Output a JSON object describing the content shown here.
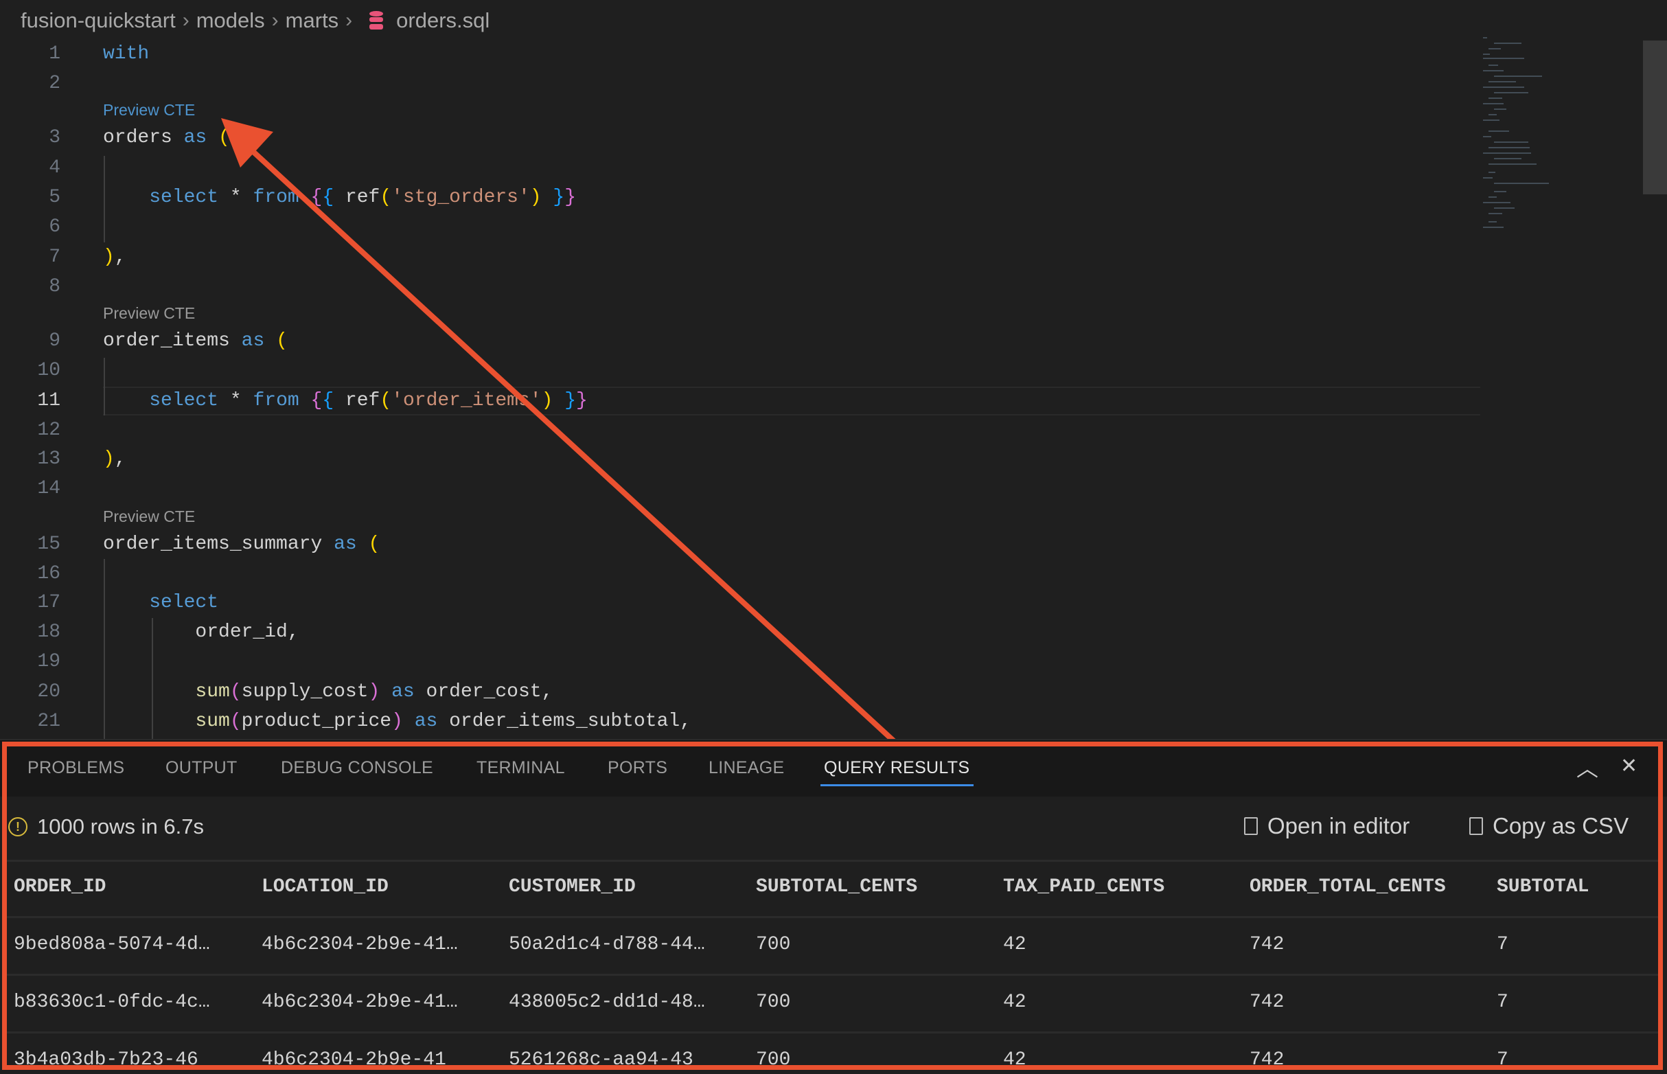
{
  "breadcrumb": [
    "fusion-quickstart",
    "models",
    "marts",
    "orders.sql"
  ],
  "colors": {
    "keyword": "#569cd6",
    "string": "#ce9178",
    "function": "#dcdcaa",
    "paren": "#ffd700",
    "bracket": "#da70d6",
    "brace": "#179fff",
    "annotation": "#ea5130",
    "tab_active": "#3c8ce7",
    "warning": "#d7ba3c",
    "db_icon": "#e8547a"
  },
  "editor": {
    "active_line": 11,
    "codelens_label": "Preview CTE",
    "lines": [
      {
        "n": 1,
        "t": [
          [
            "kw",
            "with"
          ]
        ]
      },
      {
        "n": 2,
        "t": []
      },
      {
        "n": 3,
        "lens": true,
        "t": [
          [
            "tx",
            "orders "
          ],
          [
            "kw",
            "as"
          ],
          [
            "tx",
            " "
          ],
          [
            "y",
            "("
          ]
        ]
      },
      {
        "n": 4,
        "t": []
      },
      {
        "n": 5,
        "t": [
          [
            "tx",
            "    "
          ],
          [
            "kw",
            "select"
          ],
          [
            "tx",
            " * "
          ],
          [
            "kw",
            "from"
          ],
          [
            "tx",
            " "
          ],
          [
            "p",
            "{"
          ],
          [
            "b",
            "{"
          ],
          [
            "tx",
            " ref"
          ],
          [
            "y",
            "("
          ],
          [
            "st",
            "'stg_orders'"
          ],
          [
            "y",
            ")"
          ],
          [
            "tx",
            " "
          ],
          [
            "b",
            "}"
          ],
          [
            "p",
            "}"
          ]
        ]
      },
      {
        "n": 6,
        "t": []
      },
      {
        "n": 7,
        "t": [
          [
            "y",
            ")"
          ],
          [
            "tx",
            ","
          ]
        ]
      },
      {
        "n": 8,
        "t": []
      },
      {
        "n": 9,
        "lens": true,
        "t": [
          [
            "tx",
            "order_items "
          ],
          [
            "kw",
            "as"
          ],
          [
            "tx",
            " "
          ],
          [
            "y",
            "("
          ]
        ]
      },
      {
        "n": 10,
        "t": []
      },
      {
        "n": 11,
        "t": [
          [
            "tx",
            "    "
          ],
          [
            "kw",
            "select"
          ],
          [
            "tx",
            " * "
          ],
          [
            "kw",
            "from"
          ],
          [
            "tx",
            " "
          ],
          [
            "p",
            "{"
          ],
          [
            "b",
            "{"
          ],
          [
            "tx",
            " ref"
          ],
          [
            "y",
            "("
          ],
          [
            "st",
            "'order_items'"
          ],
          [
            "y",
            ")"
          ],
          [
            "tx",
            " "
          ],
          [
            "b",
            "}"
          ],
          [
            "p",
            "}"
          ]
        ]
      },
      {
        "n": 12,
        "t": []
      },
      {
        "n": 13,
        "t": [
          [
            "y",
            ")"
          ],
          [
            "tx",
            ","
          ]
        ]
      },
      {
        "n": 14,
        "t": []
      },
      {
        "n": 15,
        "lens": true,
        "t": [
          [
            "tx",
            "order_items_summary "
          ],
          [
            "kw",
            "as"
          ],
          [
            "tx",
            " "
          ],
          [
            "y",
            "("
          ]
        ]
      },
      {
        "n": 16,
        "t": []
      },
      {
        "n": 17,
        "t": [
          [
            "tx",
            "    "
          ],
          [
            "kw",
            "select"
          ]
        ]
      },
      {
        "n": 18,
        "t": [
          [
            "tx",
            "        order_id,"
          ]
        ]
      },
      {
        "n": 19,
        "t": []
      },
      {
        "n": 20,
        "t": [
          [
            "tx",
            "        "
          ],
          [
            "fn",
            "sum"
          ],
          [
            "p",
            "("
          ],
          [
            "tx",
            "supply_cost"
          ],
          [
            "p",
            ")"
          ],
          [
            "tx",
            " "
          ],
          [
            "kw",
            "as"
          ],
          [
            "tx",
            " order_cost,"
          ]
        ]
      },
      {
        "n": 21,
        "t": [
          [
            "tx",
            "        "
          ],
          [
            "fn",
            "sum"
          ],
          [
            "p",
            "("
          ],
          [
            "tx",
            "product_price"
          ],
          [
            "p",
            ")"
          ],
          [
            "tx",
            " "
          ],
          [
            "kw",
            "as"
          ],
          [
            "tx",
            " order_items_subtotal,"
          ]
        ]
      }
    ]
  },
  "panel": {
    "tabs": [
      "PROBLEMS",
      "OUTPUT",
      "DEBUG CONSOLE",
      "TERMINAL",
      "PORTS",
      "LINEAGE",
      "QUERY RESULTS"
    ],
    "active_tab": "QUERY RESULTS",
    "status": "1000 rows in 6.7s",
    "open_in_editor": "Open in editor",
    "copy_as_csv": "Copy as CSV",
    "columns": [
      "ORDER_ID",
      "LOCATION_ID",
      "CUSTOMER_ID",
      "SUBTOTAL_CENTS",
      "TAX_PAID_CENTS",
      "ORDER_TOTAL_CENTS",
      "SUBTOTAL"
    ],
    "rows": [
      [
        "9bed808a-5074-4d…",
        "4b6c2304-2b9e-41…",
        "50a2d1c4-d788-44…",
        "700",
        "42",
        "742",
        "7"
      ],
      [
        "b83630c1-0fdc-4c…",
        "4b6c2304-2b9e-41…",
        "438005c2-dd1d-48…",
        "700",
        "42",
        "742",
        "7"
      ],
      [
        "3b4a03db-7b23-46",
        "4b6c2304-2b9e-41",
        "5261268c-aa94-43",
        "700",
        "42",
        "742",
        "7"
      ]
    ]
  }
}
